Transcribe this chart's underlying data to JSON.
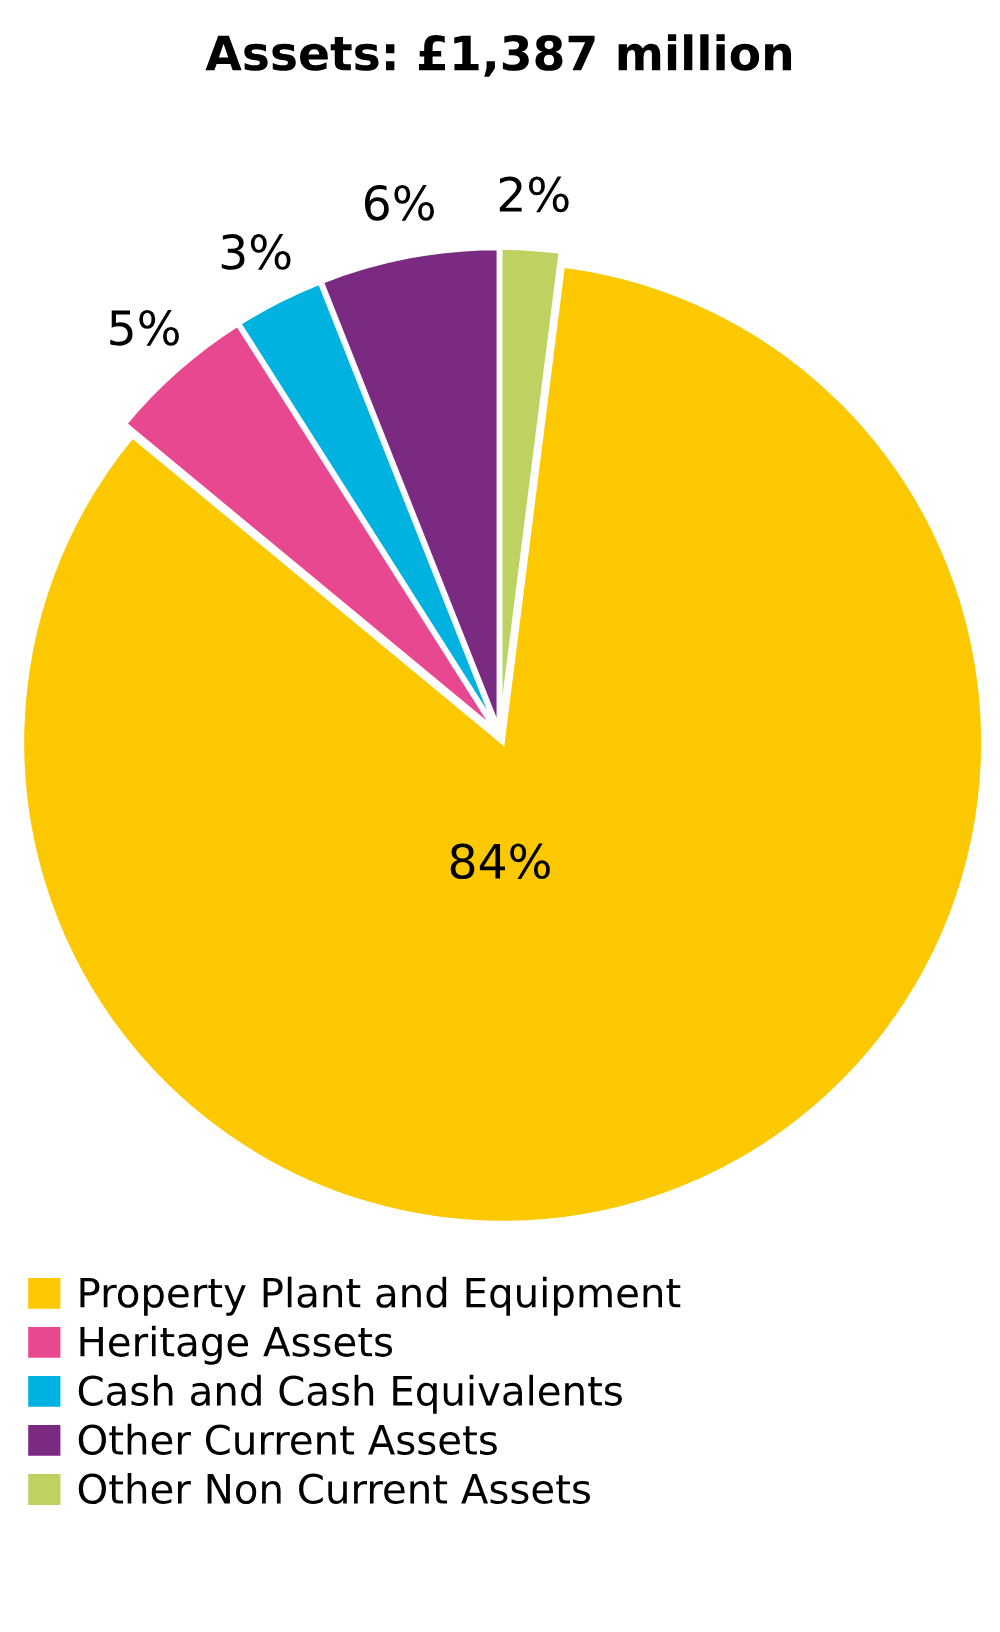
{
  "chart_data": {
    "type": "pie",
    "title": "Assets: £1,387 million",
    "categories": [
      "Property Plant and Equipment",
      "Heritage Assets",
      "Cash and Cash Equivalents",
      "Other Current Assets",
      "Other Non Current Assets"
    ],
    "values": [
      84,
      5,
      3,
      6,
      2
    ],
    "colors": [
      "#fcc800",
      "#e8488f",
      "#00b2e0",
      "#7b2a82",
      "#bdd261"
    ],
    "value_labels": [
      "84%",
      "5%",
      "3%",
      "6%",
      "2%"
    ],
    "legend": "bottom"
  }
}
